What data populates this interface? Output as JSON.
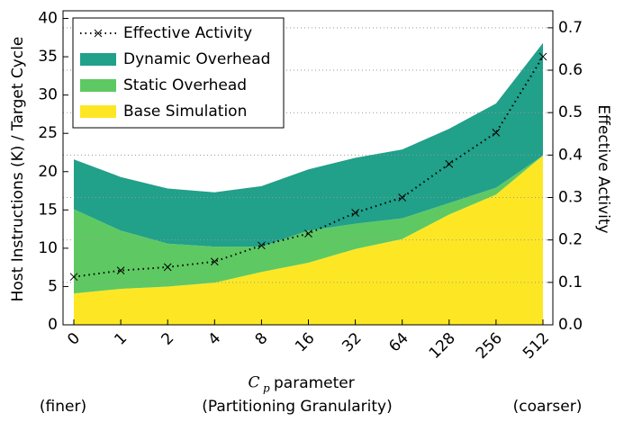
{
  "chart_data": {
    "type": "stacked-area",
    "y_label": "Host Instructions (K) / Target Cycle",
    "y2_label": "Effective Activity",
    "x_label_symbol": "C",
    "x_label_subscript": "p",
    "x_label": "parameter",
    "annotations": [
      "(finer)",
      "(Partitioning Granularity)",
      "(coarser)"
    ],
    "categories": [
      "0",
      "1",
      "2",
      "4",
      "8",
      "16",
      "32",
      "64",
      "128",
      "256",
      "512"
    ],
    "series": [
      {
        "name": "Base Simulation",
        "color": "#fde725",
        "values": [
          4.1,
          4.7,
          5.0,
          5.5,
          6.9,
          8.1,
          9.9,
          11.2,
          14.4,
          17.0,
          22.1
        ]
      },
      {
        "name": "Static Overhead",
        "color": "#5ec962",
        "values": [
          11.0,
          7.6,
          5.6,
          4.7,
          3.3,
          4.2,
          3.3,
          2.7,
          1.5,
          0.9,
          0.0
        ]
      },
      {
        "name": "Dynamic Overhead",
        "color": "#21a08a",
        "values": [
          6.5,
          7.0,
          7.2,
          7.1,
          7.9,
          8.0,
          8.6,
          9.0,
          9.7,
          11.0,
          14.7
        ]
      },
      {
        "name": "Effective Activity",
        "type": "line",
        "axis": "y2",
        "color": "#000000",
        "values": [
          0.113,
          0.128,
          0.136,
          0.149,
          0.187,
          0.215,
          0.264,
          0.3,
          0.379,
          0.453,
          0.632
        ]
      }
    ],
    "legend_order": [
      3,
      2,
      1,
      0
    ],
    "legend": "upper left",
    "ylim": [
      0,
      41
    ],
    "yticks": [
      0,
      5,
      10,
      15,
      20,
      25,
      30,
      35,
      40
    ],
    "y2lim": [
      0,
      0.74
    ],
    "y2ticks": [
      {
        "value": 0,
        "label": "0.0"
      },
      0.1,
      0.2,
      0.3,
      0.4,
      0.5,
      0.6,
      0.7
    ],
    "grid": true
  }
}
